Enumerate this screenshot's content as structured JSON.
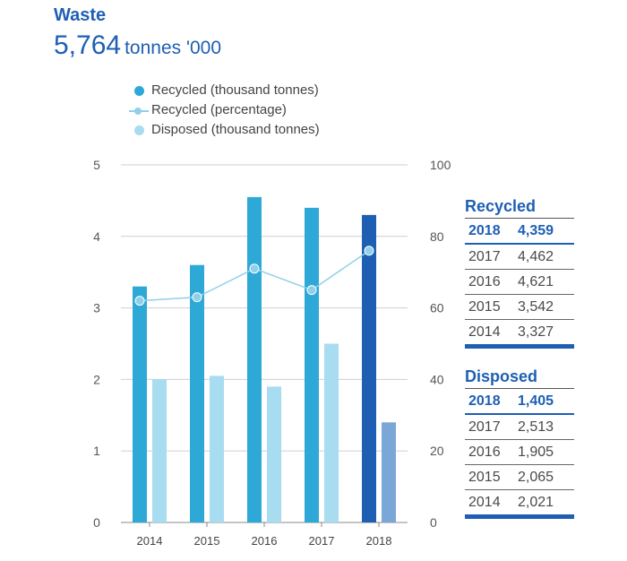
{
  "header": {
    "title": "Waste",
    "total_value": "5,764",
    "total_unit": "tonnes '000"
  },
  "legend": [
    {
      "label": "Recycled (thousand tonnes)",
      "symbol": "dot",
      "color": "#2ea8d6"
    },
    {
      "label": "Recycled (percentage)",
      "symbol": "line",
      "color": "#8fd0ea"
    },
    {
      "label": "Disposed (thousand tonnes)",
      "symbol": "dot",
      "color": "#a8dcf0"
    }
  ],
  "chart_data": {
    "type": "bar",
    "categories": [
      "2014",
      "2015",
      "2016",
      "2017",
      "2018"
    ],
    "series": [
      {
        "name": "Recycled (thousand tonnes)",
        "type": "bar",
        "axis": "left",
        "values": [
          3.3,
          3.6,
          4.55,
          4.4,
          4.3
        ]
      },
      {
        "name": "Disposed (thousand tonnes)",
        "type": "bar",
        "axis": "left",
        "values": [
          2.0,
          2.05,
          1.9,
          2.5,
          1.4
        ]
      },
      {
        "name": "Recycled (percentage)",
        "type": "line",
        "axis": "right",
        "values": [
          62,
          63,
          71,
          65,
          76
        ]
      }
    ],
    "yticks_left": [
      "0",
      "1",
      "2",
      "3",
      "4",
      "5"
    ],
    "yticks_right": [
      "0",
      "20",
      "40",
      "60",
      "80",
      "100"
    ],
    "ylim_left": [
      0,
      5
    ],
    "ylim_right": [
      0,
      100
    ],
    "highlight_category": "2018",
    "colors": {
      "recycled": "#2ea8d6",
      "recycled_highlight": "#1e5fb4",
      "disposed": "#a8dcf0",
      "disposed_highlight": "#7aa7d8",
      "line": "#8fd0ea",
      "grid": "#cfcfcf"
    }
  },
  "tables": {
    "recycled": {
      "title": "Recycled",
      "rows": [
        {
          "year": "2018",
          "value": "4,359"
        },
        {
          "year": "2017",
          "value": "4,462"
        },
        {
          "year": "2016",
          "value": "4,621"
        },
        {
          "year": "2015",
          "value": "3,542"
        },
        {
          "year": "2014",
          "value": "3,327"
        }
      ]
    },
    "disposed": {
      "title": "Disposed",
      "rows": [
        {
          "year": "2018",
          "value": "1,405"
        },
        {
          "year": "2017",
          "value": "2,513"
        },
        {
          "year": "2016",
          "value": "1,905"
        },
        {
          "year": "2015",
          "value": "2,065"
        },
        {
          "year": "2014",
          "value": "2,021"
        }
      ]
    }
  }
}
